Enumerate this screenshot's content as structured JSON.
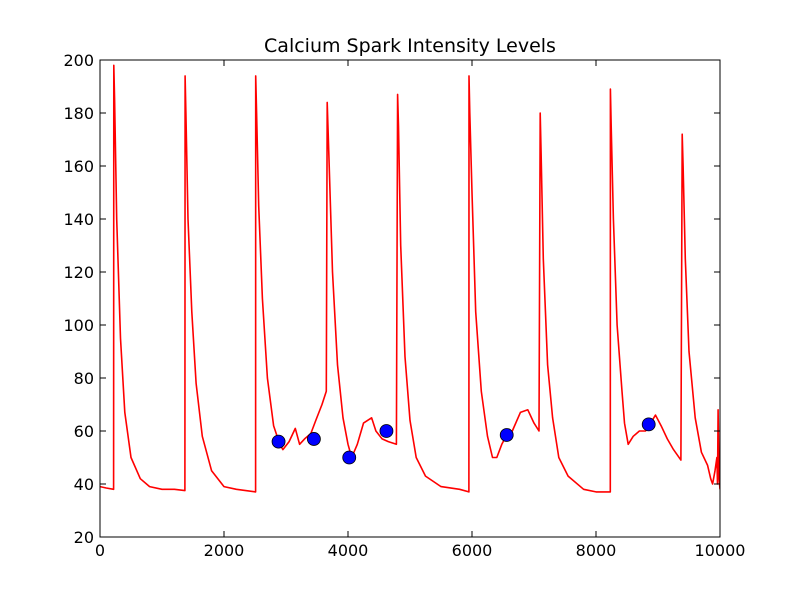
{
  "chart_data": {
    "type": "line",
    "title": "Calcium Spark Intensity Levels",
    "xlabel": "",
    "ylabel": "",
    "xlim": [
      0,
      10000
    ],
    "ylim": [
      20,
      200
    ],
    "xticks": [
      0,
      2000,
      4000,
      6000,
      8000,
      10000
    ],
    "yticks": [
      20,
      40,
      60,
      80,
      100,
      120,
      140,
      160,
      180,
      200
    ],
    "grid": false,
    "legend": "none",
    "colors": {
      "line": "#ff0000",
      "markers": "#0000ff"
    },
    "series": [
      {
        "style": "line",
        "x": [
          0,
          100,
          220,
          222,
          235,
          270,
          330,
          400,
          500,
          650,
          800,
          1000,
          1200,
          1370,
          1372,
          1385,
          1420,
          1480,
          1550,
          1650,
          1800,
          2000,
          2200,
          2510,
          2512,
          2525,
          2560,
          2620,
          2700,
          2800,
          2900,
          2950,
          3050,
          3150,
          3220,
          3300,
          3400,
          3480,
          3580,
          3650,
          3665,
          3690,
          3750,
          3830,
          3920,
          4000,
          4060,
          4150,
          4250,
          4380,
          4450,
          4550,
          4650,
          4780,
          4800,
          4815,
          4850,
          4920,
          5000,
          5100,
          5250,
          5500,
          5800,
          5950,
          5952,
          5965,
          6000,
          6060,
          6150,
          6250,
          6330,
          6400,
          6480,
          6550,
          6650,
          6780,
          6900,
          7000,
          7080,
          7100,
          7115,
          7150,
          7220,
          7300,
          7400,
          7550,
          7800,
          8000,
          8230,
          8232,
          8245,
          8280,
          8340,
          8420,
          8460,
          8520,
          8600,
          8700,
          8800,
          8880,
          8960,
          9050,
          9150,
          9250,
          9370,
          9390,
          9405,
          9440,
          9500,
          9600,
          9700,
          9800,
          9850,
          9880,
          9920,
          9950,
          9960,
          9970,
          9985,
          10000
        ],
        "y": [
          39,
          38.5,
          38,
          198,
          185,
          140,
          95,
          67,
          50,
          42,
          39,
          38,
          38,
          37.5,
          194,
          180,
          140,
          105,
          78,
          58,
          45,
          39,
          38,
          37,
          194,
          180,
          145,
          110,
          80,
          62,
          55,
          53,
          56,
          61,
          55,
          57,
          59,
          64,
          70,
          75,
          184,
          165,
          120,
          85,
          65,
          55,
          50,
          55,
          63,
          65,
          60,
          57,
          56,
          55,
          187,
          175,
          130,
          88,
          64,
          50,
          43,
          39,
          38,
          37,
          194,
          180,
          150,
          105,
          75,
          58,
          50,
          50,
          55,
          58,
          60,
          67,
          68,
          63,
          60,
          180,
          165,
          125,
          85,
          65,
          50,
          43,
          38,
          37,
          37,
          189,
          175,
          140,
          100,
          75,
          63,
          55,
          58,
          60,
          60,
          63,
          66,
          62,
          57,
          53,
          49,
          172,
          160,
          125,
          90,
          65,
          52,
          47,
          42,
          40,
          45,
          50,
          40,
          68,
          42,
          38
        ]
      },
      {
        "style": "markers",
        "x": [
          2880,
          3450,
          4020,
          4620,
          6560,
          8850
        ],
        "y": [
          56,
          57,
          50,
          60,
          58.5,
          62.5
        ]
      }
    ]
  }
}
